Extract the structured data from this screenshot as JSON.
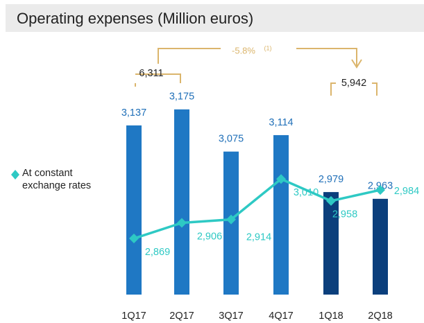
{
  "chart_data": {
    "type": "bar",
    "title": "Operating expenses (Million euros)",
    "categories": [
      "1Q17",
      "2Q17",
      "3Q17",
      "4Q17",
      "1Q18",
      "2Q18"
    ],
    "series": [
      {
        "type": "bar",
        "colors": [
          "#1f78c4",
          "#1f78c4",
          "#1f78c4",
          "#1f78c4",
          "#0b3f7c",
          "#0b3f7c"
        ],
        "values": [
          3137,
          3175,
          3075,
          3114,
          2979,
          2963
        ],
        "value_labels": [
          "3,137",
          "3,175",
          "3,075",
          "3,114",
          "2,979",
          "2,963"
        ]
      },
      {
        "type": "line",
        "name": "At constant exchange rates",
        "color": "#2ec9c4",
        "values": [
          2869,
          2906,
          2914,
          3010,
          2958,
          2984
        ],
        "value_labels": [
          "2,869",
          "2,906",
          "2,914",
          "3,010",
          "2,958",
          "2,984"
        ]
      }
    ],
    "ylim": [
      2736,
      3270
    ],
    "annotations": [
      "6,311",
      "5,942",
      "-5.8%",
      "(1)"
    ]
  }
}
